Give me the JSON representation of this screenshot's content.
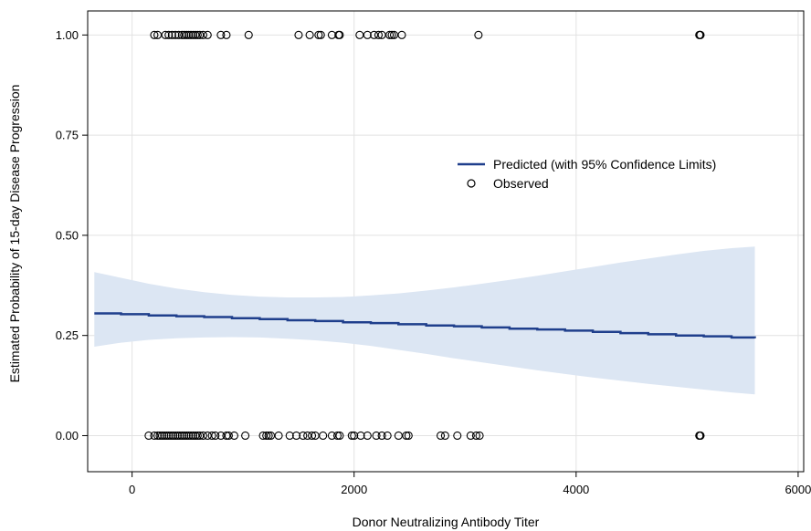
{
  "chart_data": {
    "type": "line",
    "xlabel": "Donor Neutralizing Antibody Titer",
    "ylabel": "Estimated Probability of 15-day Disease Progression",
    "xlim": [
      -400,
      6050
    ],
    "ylim": [
      -0.09,
      1.06
    ],
    "x_ticks": [
      0,
      2000,
      4000,
      6000
    ],
    "x_tick_labels": [
      "0",
      "2000",
      "4000",
      "6000"
    ],
    "y_ticks": [
      0.0,
      0.25,
      0.5,
      0.75,
      1.0
    ],
    "y_tick_labels": [
      "0.00",
      "0.25",
      "0.50",
      "0.75",
      "1.00"
    ],
    "grid": true,
    "legend_position": "center-right",
    "colors": {
      "predicted": "#1f3f8c",
      "band": "#dce6f3",
      "observed": "#000000",
      "grid": "#e2e2e2"
    },
    "series": [
      {
        "name": "Predicted (with 95% Confidence Limits)",
        "type": "step",
        "x": [
          -340,
          -100,
          150,
          400,
          650,
          900,
          1150,
          1400,
          1650,
          1900,
          2150,
          2400,
          2650,
          2900,
          3150,
          3400,
          3650,
          3900,
          4150,
          4400,
          4650,
          4900,
          5150,
          5400,
          5610
        ],
        "y": [
          0.305,
          0.303,
          0.3,
          0.298,
          0.296,
          0.293,
          0.291,
          0.288,
          0.286,
          0.283,
          0.281,
          0.278,
          0.275,
          0.273,
          0.27,
          0.267,
          0.265,
          0.262,
          0.259,
          0.256,
          0.253,
          0.25,
          0.248,
          0.245,
          0.243
        ],
        "lower": [
          0.222,
          0.232,
          0.239,
          0.243,
          0.245,
          0.246,
          0.245,
          0.242,
          0.238,
          0.232,
          0.224,
          0.214,
          0.204,
          0.193,
          0.183,
          0.173,
          0.163,
          0.154,
          0.145,
          0.137,
          0.129,
          0.122,
          0.115,
          0.108,
          0.103
        ],
        "upper": [
          0.408,
          0.394,
          0.379,
          0.367,
          0.358,
          0.351,
          0.347,
          0.345,
          0.345,
          0.346,
          0.35,
          0.355,
          0.362,
          0.37,
          0.379,
          0.389,
          0.399,
          0.41,
          0.421,
          0.432,
          0.442,
          0.452,
          0.461,
          0.468,
          0.472
        ]
      },
      {
        "name": "Observed",
        "type": "scatter",
        "points_y1": [
          200,
          230,
          300,
          330,
          360,
          390,
          420,
          450,
          470,
          490,
          510,
          530,
          550,
          570,
          590,
          610,
          640,
          680,
          800,
          850,
          1050,
          1500,
          1600,
          1680,
          1700,
          1800,
          1860,
          1870,
          2050,
          2120,
          2180,
          2220,
          2250,
          2320,
          2340,
          2360,
          2430,
          3120,
          5110,
          5115,
          5120
        ],
        "points_y0": [
          150,
          200,
          230,
          250,
          270,
          290,
          310,
          330,
          350,
          370,
          390,
          410,
          430,
          450,
          470,
          490,
          510,
          530,
          550,
          570,
          590,
          610,
          640,
          680,
          720,
          750,
          800,
          850,
          870,
          920,
          1020,
          1180,
          1210,
          1230,
          1250,
          1320,
          1420,
          1480,
          1540,
          1580,
          1620,
          1650,
          1720,
          1800,
          1850,
          1870,
          1980,
          2000,
          2060,
          2120,
          2200,
          2250,
          2300,
          2400,
          2470,
          2490,
          2780,
          2820,
          2930,
          3050,
          3100,
          3130,
          5110,
          5115,
          5120
        ]
      }
    ]
  }
}
